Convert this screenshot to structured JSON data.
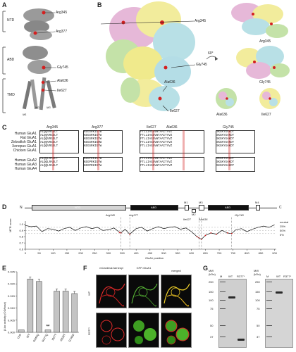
{
  "panel_labels": {
    "a": "A",
    "b": "B",
    "c": "C",
    "d": "D",
    "e": "E",
    "f": "F",
    "g": "G"
  },
  "panel_a": {
    "domains": [
      "NTD",
      "ABD",
      "TMD"
    ],
    "residues": [
      "Arg345",
      "Arg377",
      "Gly745",
      "Ala636",
      "Ile627"
    ],
    "helices": [
      "M1",
      "M2",
      "M3"
    ]
  },
  "panel_b": {
    "residues_main": [
      "Arg345",
      "Gly745",
      "Ala636",
      "Ile627"
    ],
    "rotation": "60°",
    "residues_side": [
      "Arg345",
      "Gly745",
      "Ala636",
      "Ile627"
    ]
  },
  "panel_c": {
    "headers": [
      "Arg345",
      "Arg377",
      "Ile627",
      "Ala636",
      "Gly745"
    ],
    "species_top": [
      "Human GluA1",
      "Rat GluA1",
      "Zebrafish GluA1",
      "Xenopus GluA1",
      "Chicken GluA1"
    ],
    "species_bottom": [
      "Human GluA2",
      "Human GluA3",
      "Human GluA4"
    ],
    "col1_top": [
      "ALQQVRGSLT",
      "ALQQVRGSLT",
      "ALQQVRGSLT",
      "ALQQVRGSLT",
      "ALQQVRGSLT"
    ],
    "col1_bot": [
      "ALQQLRASLT",
      "ALQQLRASLT",
      "ALQQLRASLT"
    ],
    "col2_top": [
      "KEGSRKIGYW",
      "KEGSRKIGYW",
      "KEGSRKIGYW",
      "KEGSRKIGHW",
      "KEGSRKIGYW"
    ],
    "col2_bot": [
      "KEGPRKIGYW",
      "KEGPRKIGYW",
      "KEGPRKIGYW"
    ],
    "col3_top": [
      "FTLLIAGSVWTAAITVVZ",
      "FTLLIAGSVWTAAITVVZ",
      "FTLLIAGSVWTAAITVVZ",
      "FTLLIAGSVWTAAITVVZ",
      "FTLLIAGSVWTAAITVVZ"
    ],
    "col3_bot": [
      "FTLLIAGSVWTAAITVVZ",
      "FTLLIAGSVWTAAITVVZ",
      "FTLLIAGSVWTAAITVVZ"
    ],
    "col4_top": [
      "SKGKYGAKDT",
      "SKGKYGAKDT",
      "SKGKYGAKDT",
      "SKGKYGAKDT",
      "SKGKYGAKDT"
    ],
    "col4_bot": [
      "SKGKYGAKDT",
      "SKGKYGAKDT",
      "SKGKYGAKDT"
    ]
  },
  "panel_d": {
    "n_term": "N",
    "c_term": "C",
    "domains": [
      "NTD",
      "ABD",
      "M1",
      "M2",
      "M3",
      "ABD",
      "M4"
    ],
    "residue_labels": [
      "Arg345",
      "Arg377",
      "Ile627",
      "Ala636",
      "Gly745"
    ],
    "ylabel": "MTR score",
    "xlabel": "GluA1 position",
    "right_labels": [
      "neutral",
      "25%",
      "50%",
      "5%"
    ],
    "yticks": [
      "1.0",
      "0.9",
      "0.8",
      "0.7",
      "0.6"
    ],
    "xticks": [
      "0",
      "50",
      "100",
      "150",
      "200",
      "250",
      "300",
      "350",
      "400",
      "450",
      "500",
      "550",
      "600",
      "650",
      "700",
      "750",
      "800",
      "850",
      "900"
    ]
  },
  "chart_data": {
    "type": "line",
    "title": "",
    "xlabel": "GluA1 position",
    "ylabel": "MTR score",
    "xlim": [
      0,
      906
    ],
    "ylim": [
      0.6,
      1.05
    ],
    "series": [
      {
        "x": [
          0,
          20,
          40,
          60,
          80,
          100,
          120,
          140,
          160,
          180,
          200,
          220,
          240,
          260,
          280,
          300,
          320,
          340,
          345,
          360,
          377,
          400,
          420,
          440,
          460,
          480,
          500,
          520,
          540,
          560,
          580,
          600,
          620,
          627,
          636,
          650,
          670,
          690,
          710,
          730,
          745,
          760,
          780,
          800,
          820,
          840,
          860,
          880,
          900
        ],
        "values": [
          0.98,
          0.96,
          0.97,
          0.88,
          0.93,
          0.92,
          0.89,
          0.93,
          0.95,
          0.9,
          0.94,
          0.96,
          0.93,
          0.95,
          0.9,
          0.91,
          0.94,
          0.87,
          0.86,
          0.92,
          0.84,
          0.93,
          0.95,
          0.89,
          0.93,
          0.96,
          0.93,
          0.95,
          0.96,
          0.92,
          0.94,
          0.88,
          0.8,
          0.78,
          0.76,
          0.82,
          0.86,
          0.84,
          0.9,
          0.86,
          0.85,
          0.91,
          0.93,
          0.88,
          0.92,
          0.95,
          0.97,
          0.95,
          0.99
        ]
      }
    ]
  },
  "panel_e": {
    "ylabel": "β-lac activity (OD/hour)",
    "categories": [
      "Untr",
      "WT",
      "R345Q",
      "R377Q",
      "I627T",
      "A636T",
      "G745D"
    ],
    "values": [
      0.001,
      0.022,
      0.021,
      0.001,
      0.017,
      0.017,
      0.016
    ],
    "yticks": [
      "0.000",
      "0.005",
      "0.010",
      "0.015",
      "0.020",
      "0.025"
    ],
    "sig": "**"
  },
  "panel_f": {
    "col_headers": [
      "mCardinal-farnesyl",
      "GFP-GluA1",
      "merged"
    ],
    "row_labels": [
      "WT",
      "R377*"
    ]
  },
  "panel_g": {
    "mw_label": "MW (kDa)",
    "lanes_left": [
      "M",
      "WT",
      "R377*"
    ],
    "lanes_right": [
      "M",
      "WT",
      "R377*"
    ],
    "mw_left": [
      "250",
      "150",
      "100",
      "75",
      "50",
      "37"
    ],
    "mw_right": [
      "250",
      "150",
      "100",
      "75",
      "50",
      "37"
    ]
  }
}
